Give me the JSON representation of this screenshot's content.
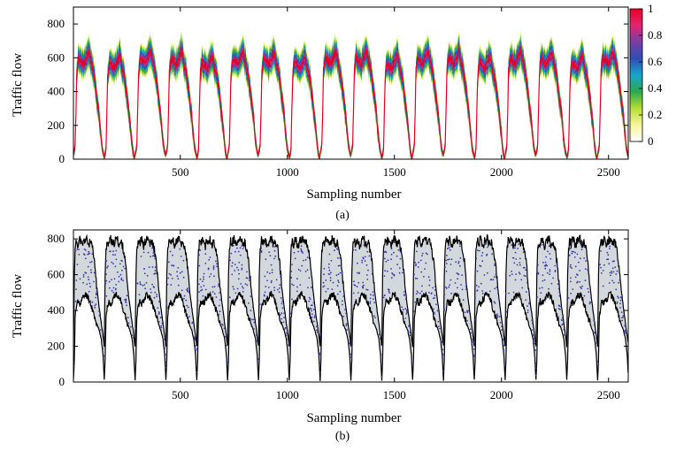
{
  "chart_data": [
    {
      "type": "area",
      "panel": "(a)",
      "xlabel": "Sampling number",
      "ylabel": "Traffic flow",
      "caption": "(a)",
      "xlim": [
        1,
        2592
      ],
      "ylim": [
        0,
        900
      ],
      "x_ticks": [
        500,
        1000,
        1500,
        2000,
        2500
      ],
      "y_ticks": [
        0,
        200,
        400,
        600,
        800
      ],
      "grid": false,
      "cycle_length": 144,
      "cycles": 18,
      "daily_profile": {
        "x_in_cycle": [
          0,
          8,
          16,
          24,
          36,
          48,
          60,
          72,
          84,
          96,
          108,
          120,
          132,
          140,
          144
        ],
        "center": [
          30,
          80,
          520,
          600,
          580,
          560,
          600,
          640,
          570,
          500,
          380,
          250,
          90,
          30,
          30
        ],
        "outer_halfwidth": [
          20,
          40,
          70,
          90,
          90,
          90,
          95,
          100,
          90,
          85,
          80,
          70,
          50,
          25,
          20
        ]
      },
      "colorbar": {
        "ticks": [
          "0",
          "0.2",
          "0.4",
          "0.6",
          "0.8",
          "1"
        ],
        "range": [
          0,
          1
        ],
        "colors": [
          "#ffffff",
          "#f6f59a",
          "#b5dd38",
          "#2ea84c",
          "#19a5cc",
          "#2f4db3",
          "#7a3ea3",
          "#e1266f",
          "#e60026"
        ]
      }
    },
    {
      "type": "area",
      "panel": "(b)",
      "xlabel": "Sampling number",
      "ylabel": "Traffic flow",
      "caption": "(b)",
      "xlim": [
        1,
        2592
      ],
      "ylim": [
        0,
        850
      ],
      "x_ticks": [
        500,
        1000,
        1500,
        2000,
        2500
      ],
      "y_ticks": [
        0,
        200,
        400,
        600,
        800
      ],
      "grid": false,
      "cycle_length": 144,
      "cycles": 18,
      "bounds_profile": {
        "x_in_cycle": [
          0,
          4,
          8,
          14,
          20,
          30,
          40,
          50,
          60,
          70,
          80,
          90,
          100,
          110,
          120,
          130,
          138,
          144
        ],
        "upper": [
          200,
          600,
          740,
          790,
          770,
          800,
          760,
          790,
          800,
          770,
          780,
          740,
          650,
          520,
          420,
          330,
          260,
          200
        ],
        "lower": [
          10,
          120,
          360,
          420,
          450,
          440,
          460,
          480,
          490,
          470,
          440,
          400,
          360,
          320,
          290,
          240,
          150,
          10
        ]
      },
      "band_color": "#d3d8dc",
      "bound_color": "#000000",
      "point_color": "#3a3aa8",
      "points_per_cycle": 55
    }
  ]
}
